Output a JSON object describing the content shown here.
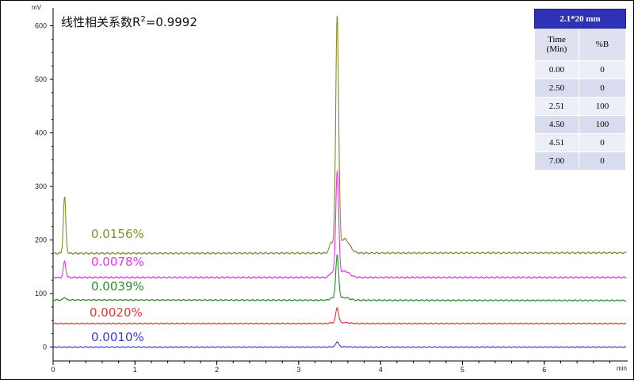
{
  "chart_data": {
    "type": "line",
    "title": "线性相关系数R²=0.9992",
    "title_parts": {
      "prefix": "线性相关系数R",
      "sup": "2",
      "suffix": "=0.9992"
    },
    "ylabel": "mV",
    "xlabel": "min",
    "xlim": [
      0,
      7
    ],
    "ylim": [
      -40,
      630
    ],
    "xticks": [
      0,
      1,
      2,
      3,
      4,
      5,
      6
    ],
    "yticks": [
      0,
      100,
      200,
      300,
      400,
      500,
      600
    ],
    "grid": false,
    "series": [
      {
        "name": "0.0156%",
        "color": "#888c2e",
        "baseline": 175,
        "early_peak": 280,
        "main_peak": 612,
        "tail_end": 176
      },
      {
        "name": "0.0078%",
        "color": "#e638e6",
        "baseline": 130,
        "early_peak": 160,
        "main_peak": 325,
        "tail_end": 130
      },
      {
        "name": "0.0039%",
        "color": "#2a8c2a",
        "baseline": 88,
        "early_peak": 93,
        "main_peak": 170,
        "tail_end": 87
      },
      {
        "name": "0.0020%",
        "color": "#e03a3a",
        "baseline": 44,
        "early_peak": 44,
        "main_peak": 73,
        "tail_end": 44
      },
      {
        "name": "0.0010%",
        "color": "#3a3ad8",
        "baseline": 0,
        "early_peak": 0,
        "main_peak": 10,
        "tail_end": 0
      }
    ],
    "early_peak_time": 0.14,
    "main_peak_time": 3.47
  },
  "gradient_table": {
    "title": "2.1*20 mm",
    "headers": [
      "Time\n(Min)",
      "%B"
    ],
    "header_time_lines": [
      "Time",
      "(Min)"
    ],
    "header_b": "%B",
    "rows": [
      [
        "0.00",
        "0"
      ],
      [
        "2.50",
        "0"
      ],
      [
        "2.51",
        "100"
      ],
      [
        "4.50",
        "100"
      ],
      [
        "4.51",
        "0"
      ],
      [
        "7.00",
        "0"
      ]
    ]
  }
}
